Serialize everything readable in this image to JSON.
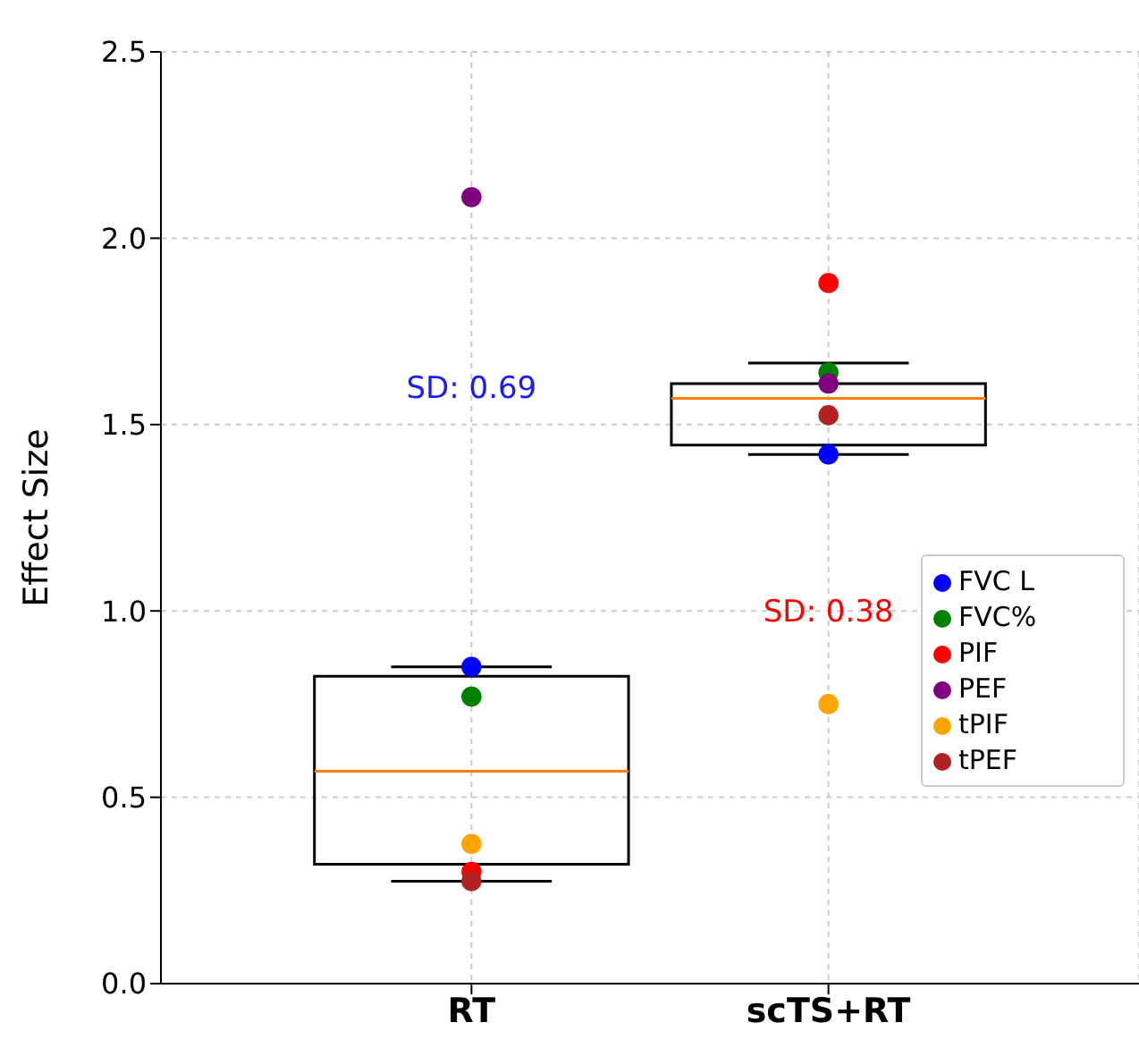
{
  "chart_data": {
    "type": "box",
    "ylabel": "Effect Size",
    "categories": [
      "RT",
      "scTS+RT"
    ],
    "boxes": [
      {
        "low": 0.275,
        "q1": 0.32,
        "median": 0.57,
        "q3": 0.825,
        "high": 0.85
      },
      {
        "low": 1.42,
        "q1": 1.445,
        "median": 1.57,
        "q3": 1.61,
        "high": 1.665
      }
    ],
    "series": [
      {
        "type": "scatter",
        "name": "FVC L",
        "color": "#0000ff",
        "x": [
          "RT",
          "scTS+RT"
        ],
        "values": [
          0.85,
          1.42
        ]
      },
      {
        "type": "scatter",
        "name": "FVC%",
        "color": "#008000",
        "x": [
          "RT",
          "scTS+RT"
        ],
        "values": [
          0.77,
          1.64
        ]
      },
      {
        "type": "scatter",
        "name": "PIF",
        "color": "#ff0000",
        "x": [
          "RT",
          "scTS+RT"
        ],
        "values": [
          0.3,
          1.88
        ]
      },
      {
        "type": "scatter",
        "name": "PEF",
        "color": "#800080",
        "x": [
          "RT",
          "scTS+RT"
        ],
        "values": [
          2.11,
          1.61
        ]
      },
      {
        "type": "scatter",
        "name": "tPIF",
        "color": "#ffa500",
        "x": [
          "RT",
          "scTS+RT"
        ],
        "values": [
          0.375,
          0.75
        ]
      },
      {
        "type": "scatter",
        "name": "tPEF",
        "color": "#b22222",
        "x": [
          "RT",
          "scTS+RT"
        ],
        "values": [
          0.275,
          1.525
        ]
      }
    ],
    "annotations": [
      "SD: 0.69",
      "SD: 0.38"
    ],
    "ylim": [
      0,
      2.5
    ],
    "yticks": [
      {
        "value": 0,
        "label": "0.0"
      },
      0.5,
      {
        "value": 1,
        "label": "1.0"
      },
      1.5,
      {
        "value": 2,
        "label": "2.0"
      },
      2.5
    ],
    "grid": true,
    "legend": "right",
    "marker": "circle"
  }
}
